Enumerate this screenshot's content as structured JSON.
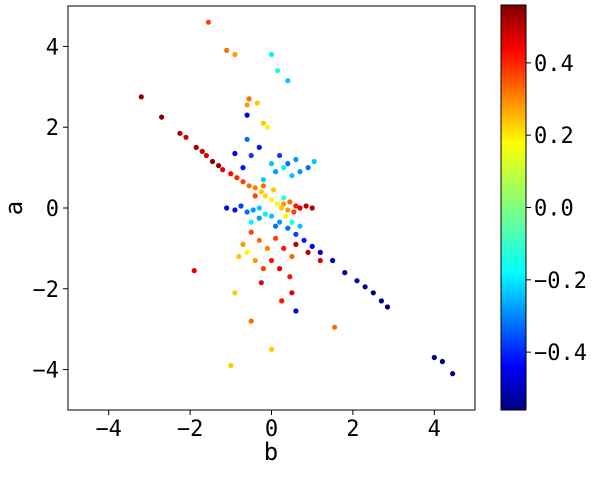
{
  "chart_data": {
    "type": "scatter",
    "xlabel": "b",
    "ylabel": "a",
    "xlim": [
      -5,
      5
    ],
    "ylim": [
      -5,
      5
    ],
    "x_ticks": [
      -4,
      -2,
      0,
      2,
      4
    ],
    "x_tick_labels": [
      "−4",
      "−2",
      "0",
      "2",
      "4"
    ],
    "y_ticks": [
      -4,
      -2,
      0,
      2,
      4
    ],
    "y_tick_labels": [
      "−4",
      "−2",
      "0",
      "2",
      "4"
    ],
    "grid": false,
    "colormap": "jet",
    "color_range": [
      -0.56,
      0.56
    ],
    "colorbar_ticks": [
      -0.4,
      -0.2,
      0.0,
      0.2,
      0.4
    ],
    "colorbar_tick_labels": [
      "−0.4",
      "−0.2",
      "0.0",
      "0.2",
      "0.4"
    ],
    "points": [
      {
        "x": -3.2,
        "y": 2.75,
        "c": 0.55
      },
      {
        "x": -2.7,
        "y": 2.25,
        "c": 0.55
      },
      {
        "x": -2.25,
        "y": 1.85,
        "c": 0.5
      },
      {
        "x": -2.1,
        "y": 1.75,
        "c": 0.48
      },
      {
        "x": -1.85,
        "y": 1.5,
        "c": 0.52
      },
      {
        "x": -1.7,
        "y": 1.4,
        "c": 0.5
      },
      {
        "x": -1.6,
        "y": 1.3,
        "c": 0.45
      },
      {
        "x": -1.45,
        "y": 1.15,
        "c": 0.55
      },
      {
        "x": -1.3,
        "y": 1.05,
        "c": 0.55
      },
      {
        "x": -1.2,
        "y": 0.95,
        "c": 0.45
      },
      {
        "x": -1.0,
        "y": 0.85,
        "c": 0.42
      },
      {
        "x": -0.85,
        "y": 0.75,
        "c": 0.38
      },
      {
        "x": -0.7,
        "y": 0.65,
        "c": 0.35
      },
      {
        "x": -0.55,
        "y": 0.55,
        "c": 0.3
      },
      {
        "x": -0.4,
        "y": 0.5,
        "c": 0.28
      },
      {
        "x": -0.25,
        "y": 0.4,
        "c": 0.2
      },
      {
        "x": -0.15,
        "y": 0.3,
        "c": 0.18
      },
      {
        "x": 0.0,
        "y": 0.2,
        "c": 0.15
      },
      {
        "x": 0.15,
        "y": 0.1,
        "c": 0.12
      },
      {
        "x": 0.25,
        "y": 0.0,
        "c": 0.2
      },
      {
        "x": 0.4,
        "y": -0.05,
        "c": 0.25
      },
      {
        "x": 0.55,
        "y": -0.1,
        "c": 0.35
      },
      {
        "x": 0.7,
        "y": 0.0,
        "c": 0.45
      },
      {
        "x": 0.85,
        "y": 0.05,
        "c": 0.5
      },
      {
        "x": 1.0,
        "y": 0.0,
        "c": 0.5
      },
      {
        "x": 0.3,
        "y": 0.1,
        "c": 0.25
      },
      {
        "x": 0.45,
        "y": 0.15,
        "c": 0.3
      },
      {
        "x": 0.6,
        "y": 0.05,
        "c": 0.4
      },
      {
        "x": -1.1,
        "y": 0.0,
        "c": -0.45
      },
      {
        "x": -0.9,
        "y": -0.05,
        "c": -0.4
      },
      {
        "x": -0.75,
        "y": 0.05,
        "c": -0.35
      },
      {
        "x": -0.6,
        "y": -0.1,
        "c": -0.3
      },
      {
        "x": -0.45,
        "y": -0.05,
        "c": -0.25
      },
      {
        "x": -0.3,
        "y": 0.0,
        "c": -0.2
      },
      {
        "x": -0.15,
        "y": -0.15,
        "c": -0.15
      },
      {
        "x": 0.0,
        "y": -0.2,
        "c": -0.2
      },
      {
        "x": 0.2,
        "y": -0.35,
        "c": -0.25
      },
      {
        "x": 0.4,
        "y": -0.5,
        "c": -0.3
      },
      {
        "x": 0.6,
        "y": -0.65,
        "c": -0.35
      },
      {
        "x": 0.8,
        "y": -0.8,
        "c": -0.4
      },
      {
        "x": 1.0,
        "y": -0.95,
        "c": -0.45
      },
      {
        "x": 1.2,
        "y": -1.1,
        "c": -0.48
      },
      {
        "x": 1.5,
        "y": -1.3,
        "c": -0.5
      },
      {
        "x": 1.8,
        "y": -1.6,
        "c": -0.52
      },
      {
        "x": 2.1,
        "y": -1.8,
        "c": -0.52
      },
      {
        "x": 2.3,
        "y": -1.95,
        "c": -0.55
      },
      {
        "x": 2.5,
        "y": -2.1,
        "c": -0.55
      },
      {
        "x": 2.7,
        "y": -2.3,
        "c": -0.55
      },
      {
        "x": 2.85,
        "y": -2.45,
        "c": -0.55
      },
      {
        "x": 4.0,
        "y": -3.7,
        "c": -0.55
      },
      {
        "x": 4.2,
        "y": -3.8,
        "c": -0.55
      },
      {
        "x": 4.45,
        "y": -4.1,
        "c": -0.55
      },
      {
        "x": -0.5,
        "y": 1.3,
        "c": -0.35
      },
      {
        "x": -0.3,
        "y": 1.5,
        "c": -0.4
      },
      {
        "x": -0.6,
        "y": 1.7,
        "c": -0.3
      },
      {
        "x": 0.0,
        "y": 1.1,
        "c": -0.2
      },
      {
        "x": 0.1,
        "y": 0.9,
        "c": -0.25
      },
      {
        "x": 0.3,
        "y": 1.0,
        "c": -0.15
      },
      {
        "x": 0.5,
        "y": 0.8,
        "c": -0.2
      },
      {
        "x": 0.7,
        "y": 0.9,
        "c": -0.25
      },
      {
        "x": 0.9,
        "y": 1.0,
        "c": -0.3
      },
      {
        "x": 1.05,
        "y": 1.15,
        "c": -0.2
      },
      {
        "x": 0.2,
        "y": 1.3,
        "c": -0.35
      },
      {
        "x": 0.4,
        "y": 1.1,
        "c": -0.3
      },
      {
        "x": 0.6,
        "y": 1.2,
        "c": -0.25
      },
      {
        "x": -0.2,
        "y": 0.7,
        "c": -0.2
      },
      {
        "x": -0.9,
        "y": 1.35,
        "c": -0.45
      },
      {
        "x": -0.7,
        "y": 1.0,
        "c": -0.4
      },
      {
        "x": 0.0,
        "y": 3.8,
        "c": -0.15
      },
      {
        "x": 0.15,
        "y": 3.4,
        "c": -0.12
      },
      {
        "x": 0.4,
        "y": 3.15,
        "c": -0.2
      },
      {
        "x": -0.35,
        "y": 2.6,
        "c": 0.2
      },
      {
        "x": -0.55,
        "y": 2.7,
        "c": 0.3
      },
      {
        "x": -0.6,
        "y": 2.55,
        "c": 0.25
      },
      {
        "x": -0.1,
        "y": 2.0,
        "c": 0.15
      },
      {
        "x": -0.2,
        "y": 2.1,
        "c": 0.2
      },
      {
        "x": -1.55,
        "y": 4.6,
        "c": 0.35
      },
      {
        "x": -1.1,
        "y": 3.9,
        "c": 0.3
      },
      {
        "x": -0.9,
        "y": 3.8,
        "c": 0.25
      },
      {
        "x": -0.6,
        "y": 2.3,
        "c": -0.45
      },
      {
        "x": -0.7,
        "y": -0.9,
        "c": 0.25
      },
      {
        "x": -0.5,
        "y": -0.6,
        "c": 0.35
      },
      {
        "x": -0.3,
        "y": -0.8,
        "c": 0.3
      },
      {
        "x": -0.1,
        "y": -1.0,
        "c": 0.28
      },
      {
        "x": 0.1,
        "y": -0.75,
        "c": 0.35
      },
      {
        "x": 0.3,
        "y": -1.0,
        "c": 0.4
      },
      {
        "x": 0.5,
        "y": -1.2,
        "c": 0.3
      },
      {
        "x": -0.8,
        "y": -1.2,
        "c": 0.2
      },
      {
        "x": -0.6,
        "y": -1.1,
        "c": 0.15
      },
      {
        "x": -0.4,
        "y": -1.3,
        "c": 0.25
      },
      {
        "x": 0.0,
        "y": -1.3,
        "c": 0.4
      },
      {
        "x": 0.2,
        "y": -1.5,
        "c": 0.45
      },
      {
        "x": 0.45,
        "y": -1.7,
        "c": 0.4
      },
      {
        "x": -0.2,
        "y": -1.5,
        "c": 0.35
      },
      {
        "x": 0.6,
        "y": -0.9,
        "c": 0.5
      },
      {
        "x": 0.9,
        "y": -1.1,
        "c": 0.5
      },
      {
        "x": 1.2,
        "y": -1.3,
        "c": 0.45
      },
      {
        "x": -1.9,
        "y": -1.55,
        "c": 0.45
      },
      {
        "x": -0.9,
        "y": -2.1,
        "c": 0.2
      },
      {
        "x": -0.25,
        "y": -1.85,
        "c": 0.45
      },
      {
        "x": 0.5,
        "y": -2.1,
        "c": 0.45
      },
      {
        "x": 0.25,
        "y": -2.3,
        "c": 0.4
      },
      {
        "x": 0.6,
        "y": -2.55,
        "c": -0.45
      },
      {
        "x": -0.5,
        "y": -2.8,
        "c": 0.3
      },
      {
        "x": 1.55,
        "y": -2.95,
        "c": 0.3
      },
      {
        "x": 0.0,
        "y": -3.5,
        "c": 0.2
      },
      {
        "x": -1.0,
        "y": -3.9,
        "c": 0.2
      },
      {
        "x": -0.4,
        "y": 0.3,
        "c": 0.35
      },
      {
        "x": -0.2,
        "y": 0.55,
        "c": 0.3
      },
      {
        "x": 0.05,
        "y": 0.45,
        "c": 0.2
      },
      {
        "x": 0.35,
        "y": -0.2,
        "c": 0.15
      },
      {
        "x": 0.5,
        "y": -0.35,
        "c": -0.1
      },
      {
        "x": 0.7,
        "y": -0.45,
        "c": -0.2
      },
      {
        "x": -0.5,
        "y": -0.35,
        "c": -0.15
      },
      {
        "x": -0.3,
        "y": -0.25,
        "c": -0.25
      },
      {
        "x": 0.1,
        "y": -0.45,
        "c": -0.3
      },
      {
        "x": 0.3,
        "y": 0.25,
        "c": -0.1
      }
    ]
  }
}
